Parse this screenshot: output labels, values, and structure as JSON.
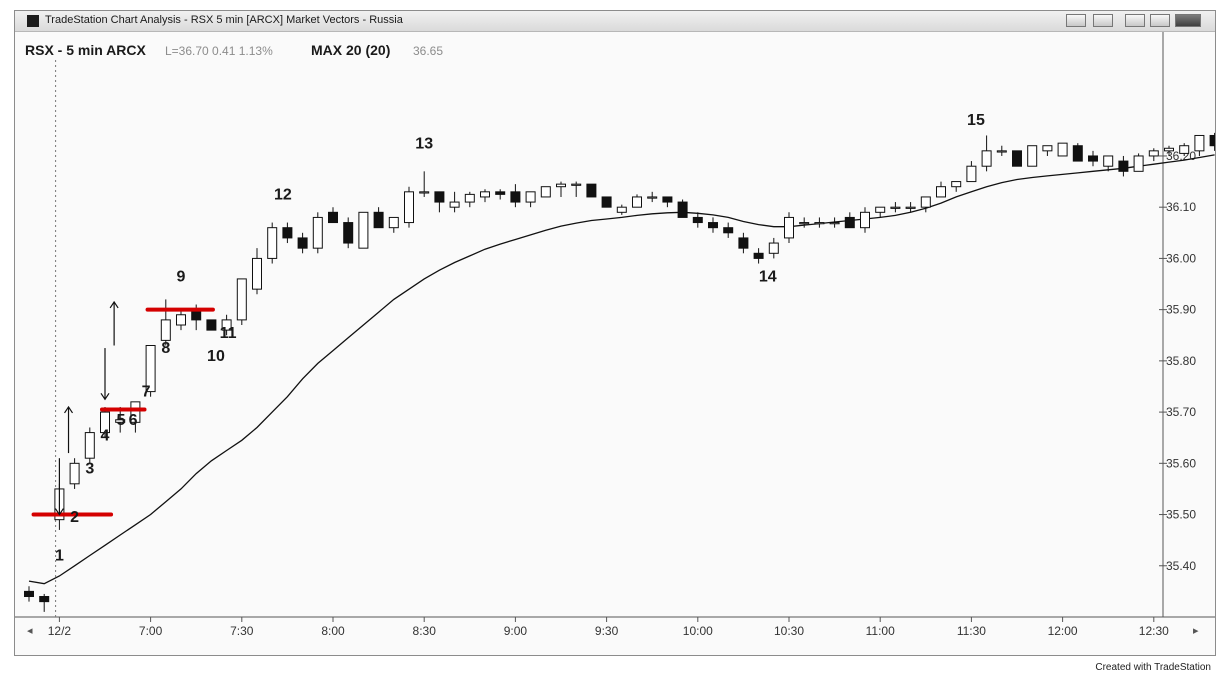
{
  "window": {
    "title": "TradeStation Chart Analysis - RSX 5 min [ARCX] Market Vectors - Russia",
    "icon": "app-icon",
    "buttons": [
      "layout-icon",
      "layout-icon",
      "minimize-icon",
      "restore-icon",
      "close-icon"
    ]
  },
  "footer": {
    "credit": "Created with TradeStation"
  },
  "chart_data": {
    "type": "candlestick",
    "header": {
      "symbol": "RSX - 5 min ARCX",
      "last": "L=36.70 0.41 1.13%",
      "indicator_name": "MAX 20 (20)",
      "indicator_value": "36.65"
    },
    "ylim": [
      35.3,
      36.36
    ],
    "y_ticks": [
      35.4,
      35.5,
      35.6,
      35.7,
      35.8,
      35.9,
      36.0,
      36.1,
      36.2
    ],
    "y_tick_labels": [
      "35.40",
      "35.50",
      "35.60",
      "35.70",
      "35.80",
      "35.90",
      "36.00",
      "36.10",
      "36.20"
    ],
    "x_ticks": [
      {
        "bar": 2,
        "label": "12/2"
      },
      {
        "bar": 8,
        "label": "7:00"
      },
      {
        "bar": 14,
        "label": "7:30"
      },
      {
        "bar": 20,
        "label": "8:00"
      },
      {
        "bar": 26,
        "label": "8:30"
      },
      {
        "bar": 32,
        "label": "9:00"
      },
      {
        "bar": 38,
        "label": "9:30"
      },
      {
        "bar": 44,
        "label": "10:00"
      },
      {
        "bar": 50,
        "label": "10:30"
      },
      {
        "bar": 56,
        "label": "11:00"
      },
      {
        "bar": 62,
        "label": "11:30"
      },
      {
        "bar": 68,
        "label": "12:00"
      },
      {
        "bar": 74,
        "label": "12:30"
      }
    ],
    "session_divider_bar": 1.75,
    "candles": [
      {
        "o": 35.35,
        "h": 35.36,
        "l": 35.33,
        "c": 35.34
      },
      {
        "o": 35.34,
        "h": 35.345,
        "l": 35.31,
        "c": 35.33
      },
      {
        "o": 35.49,
        "h": 35.56,
        "l": 35.47,
        "c": 35.55
      },
      {
        "o": 35.56,
        "h": 35.61,
        "l": 35.55,
        "c": 35.6
      },
      {
        "o": 35.61,
        "h": 35.67,
        "l": 35.6,
        "c": 35.66
      },
      {
        "o": 35.66,
        "h": 35.71,
        "l": 35.65,
        "c": 35.7
      },
      {
        "o": 35.68,
        "h": 35.71,
        "l": 35.66,
        "c": 35.685
      },
      {
        "o": 35.68,
        "h": 35.72,
        "l": 35.66,
        "c": 35.72
      },
      {
        "o": 35.74,
        "h": 35.83,
        "l": 35.73,
        "c": 35.83
      },
      {
        "o": 35.84,
        "h": 35.92,
        "l": 35.83,
        "c": 35.88
      },
      {
        "o": 35.87,
        "h": 35.9,
        "l": 35.86,
        "c": 35.89
      },
      {
        "o": 35.9,
        "h": 35.91,
        "l": 35.86,
        "c": 35.88
      },
      {
        "o": 35.88,
        "h": 35.88,
        "l": 35.86,
        "c": 35.86
      },
      {
        "o": 35.86,
        "h": 35.89,
        "l": 35.85,
        "c": 35.88
      },
      {
        "o": 35.88,
        "h": 35.96,
        "l": 35.87,
        "c": 35.96
      },
      {
        "o": 35.94,
        "h": 36.02,
        "l": 35.93,
        "c": 36.0
      },
      {
        "o": 36.0,
        "h": 36.07,
        "l": 35.99,
        "c": 36.06
      },
      {
        "o": 36.06,
        "h": 36.07,
        "l": 36.03,
        "c": 36.04
      },
      {
        "o": 36.04,
        "h": 36.05,
        "l": 36.01,
        "c": 36.02
      },
      {
        "o": 36.02,
        "h": 36.09,
        "l": 36.01,
        "c": 36.08
      },
      {
        "o": 36.09,
        "h": 36.1,
        "l": 36.07,
        "c": 36.07
      },
      {
        "o": 36.07,
        "h": 36.08,
        "l": 36.02,
        "c": 36.03
      },
      {
        "o": 36.02,
        "h": 36.09,
        "l": 36.02,
        "c": 36.09
      },
      {
        "o": 36.09,
        "h": 36.1,
        "l": 36.06,
        "c": 36.06
      },
      {
        "o": 36.06,
        "h": 36.08,
        "l": 36.05,
        "c": 36.08
      },
      {
        "o": 36.07,
        "h": 36.14,
        "l": 36.06,
        "c": 36.13
      },
      {
        "o": 36.13,
        "h": 36.17,
        "l": 36.12,
        "c": 36.13
      },
      {
        "o": 36.13,
        "h": 36.13,
        "l": 36.09,
        "c": 36.11
      },
      {
        "o": 36.1,
        "h": 36.13,
        "l": 36.09,
        "c": 36.11
      },
      {
        "o": 36.11,
        "h": 36.13,
        "l": 36.1,
        "c": 36.125
      },
      {
        "o": 36.12,
        "h": 36.135,
        "l": 36.11,
        "c": 36.13
      },
      {
        "o": 36.13,
        "h": 36.135,
        "l": 36.115,
        "c": 36.125
      },
      {
        "o": 36.13,
        "h": 36.145,
        "l": 36.1,
        "c": 36.11
      },
      {
        "o": 36.11,
        "h": 36.13,
        "l": 36.1,
        "c": 36.13
      },
      {
        "o": 36.12,
        "h": 36.14,
        "l": 36.12,
        "c": 36.14
      },
      {
        "o": 36.14,
        "h": 36.15,
        "l": 36.12,
        "c": 36.145
      },
      {
        "o": 36.145,
        "h": 36.15,
        "l": 36.12,
        "c": 36.145
      },
      {
        "o": 36.145,
        "h": 36.145,
        "l": 36.12,
        "c": 36.12
      },
      {
        "o": 36.12,
        "h": 36.12,
        "l": 36.1,
        "c": 36.1
      },
      {
        "o": 36.09,
        "h": 36.105,
        "l": 36.085,
        "c": 36.1
      },
      {
        "o": 36.1,
        "h": 36.125,
        "l": 36.1,
        "c": 36.12
      },
      {
        "o": 36.12,
        "h": 36.13,
        "l": 36.11,
        "c": 36.12
      },
      {
        "o": 36.12,
        "h": 36.12,
        "l": 36.1,
        "c": 36.11
      },
      {
        "o": 36.11,
        "h": 36.115,
        "l": 36.08,
        "c": 36.08
      },
      {
        "o": 36.08,
        "h": 36.09,
        "l": 36.06,
        "c": 36.07
      },
      {
        "o": 36.07,
        "h": 36.08,
        "l": 36.05,
        "c": 36.06
      },
      {
        "o": 36.06,
        "h": 36.07,
        "l": 36.04,
        "c": 36.05
      },
      {
        "o": 36.04,
        "h": 36.05,
        "l": 36.01,
        "c": 36.02
      },
      {
        "o": 36.01,
        "h": 36.02,
        "l": 35.99,
        "c": 36.0
      },
      {
        "o": 36.01,
        "h": 36.04,
        "l": 36.0,
        "c": 36.03
      },
      {
        "o": 36.04,
        "h": 36.09,
        "l": 36.03,
        "c": 36.08
      },
      {
        "o": 36.07,
        "h": 36.08,
        "l": 36.06,
        "c": 36.07
      },
      {
        "o": 36.07,
        "h": 36.08,
        "l": 36.06,
        "c": 36.07
      },
      {
        "o": 36.07,
        "h": 36.08,
        "l": 36.06,
        "c": 36.07
      },
      {
        "o": 36.08,
        "h": 36.09,
        "l": 36.06,
        "c": 36.06
      },
      {
        "o": 36.06,
        "h": 36.1,
        "l": 36.05,
        "c": 36.09
      },
      {
        "o": 36.09,
        "h": 36.1,
        "l": 36.08,
        "c": 36.1
      },
      {
        "o": 36.1,
        "h": 36.11,
        "l": 36.09,
        "c": 36.1
      },
      {
        "o": 36.1,
        "h": 36.11,
        "l": 36.09,
        "c": 36.1
      },
      {
        "o": 36.1,
        "h": 36.12,
        "l": 36.09,
        "c": 36.12
      },
      {
        "o": 36.12,
        "h": 36.15,
        "l": 36.12,
        "c": 36.14
      },
      {
        "o": 36.14,
        "h": 36.15,
        "l": 36.13,
        "c": 36.15
      },
      {
        "o": 36.15,
        "h": 36.19,
        "l": 36.15,
        "c": 36.18
      },
      {
        "o": 36.18,
        "h": 36.24,
        "l": 36.17,
        "c": 36.21
      },
      {
        "o": 36.21,
        "h": 36.22,
        "l": 36.2,
        "c": 36.21
      },
      {
        "o": 36.21,
        "h": 36.21,
        "l": 36.18,
        "c": 36.18
      },
      {
        "o": 36.18,
        "h": 36.22,
        "l": 36.18,
        "c": 36.22
      },
      {
        "o": 36.21,
        "h": 36.22,
        "l": 36.2,
        "c": 36.22
      },
      {
        "o": 36.2,
        "h": 36.225,
        "l": 36.2,
        "c": 36.225
      },
      {
        "o": 36.22,
        "h": 36.225,
        "l": 36.19,
        "c": 36.19
      },
      {
        "o": 36.2,
        "h": 36.21,
        "l": 36.18,
        "c": 36.19
      },
      {
        "o": 36.18,
        "h": 36.2,
        "l": 36.17,
        "c": 36.2
      },
      {
        "o": 36.19,
        "h": 36.2,
        "l": 36.16,
        "c": 36.17
      },
      {
        "o": 36.17,
        "h": 36.205,
        "l": 36.17,
        "c": 36.2
      },
      {
        "o": 36.2,
        "h": 36.215,
        "l": 36.19,
        "c": 36.21
      },
      {
        "o": 36.21,
        "h": 36.22,
        "l": 36.2,
        "c": 36.215
      },
      {
        "o": 36.205,
        "h": 36.225,
        "l": 36.2,
        "c": 36.22
      },
      {
        "o": 36.21,
        "h": 36.24,
        "l": 36.2,
        "c": 36.24
      },
      {
        "o": 36.24,
        "h": 36.245,
        "l": 36.21,
        "c": 36.22
      }
    ],
    "moving_average": [
      [
        0,
        35.37
      ],
      [
        1,
        35.365
      ],
      [
        2,
        35.38
      ],
      [
        3,
        35.4
      ],
      [
        4,
        35.42
      ],
      [
        5,
        35.44
      ],
      [
        6,
        35.46
      ],
      [
        7,
        35.48
      ],
      [
        8,
        35.5
      ],
      [
        9,
        35.525
      ],
      [
        10,
        35.55
      ],
      [
        11,
        35.58
      ],
      [
        12,
        35.605
      ],
      [
        13,
        35.625
      ],
      [
        14,
        35.645
      ],
      [
        15,
        35.67
      ],
      [
        16,
        35.7
      ],
      [
        17,
        35.73
      ],
      [
        18,
        35.765
      ],
      [
        19,
        35.795
      ],
      [
        20,
        35.82
      ],
      [
        21,
        35.845
      ],
      [
        22,
        35.87
      ],
      [
        23,
        35.895
      ],
      [
        24,
        35.92
      ],
      [
        25,
        35.94
      ],
      [
        26,
        35.96
      ],
      [
        27,
        35.977
      ],
      [
        28,
        35.992
      ],
      [
        29,
        36.005
      ],
      [
        30,
        36.018
      ],
      [
        31,
        36.028
      ],
      [
        32,
        36.037
      ],
      [
        33,
        36.046
      ],
      [
        34,
        36.055
      ],
      [
        35,
        36.063
      ],
      [
        36,
        36.069
      ],
      [
        37,
        36.074
      ],
      [
        38,
        36.077
      ],
      [
        39,
        36.08
      ],
      [
        40,
        36.084
      ],
      [
        41,
        36.087
      ],
      [
        42,
        36.089
      ],
      [
        43,
        36.09
      ],
      [
        44,
        36.088
      ],
      [
        45,
        36.085
      ],
      [
        46,
        36.08
      ],
      [
        47,
        36.072
      ],
      [
        48,
        36.066
      ],
      [
        49,
        36.062
      ],
      [
        50,
        36.062
      ],
      [
        51,
        36.065
      ],
      [
        52,
        36.068
      ],
      [
        53,
        36.071
      ],
      [
        54,
        36.074
      ],
      [
        55,
        36.077
      ],
      [
        56,
        36.08
      ],
      [
        57,
        36.084
      ],
      [
        58,
        36.09
      ],
      [
        59,
        36.098
      ],
      [
        60,
        36.108
      ],
      [
        61,
        36.12
      ],
      [
        62,
        36.13
      ],
      [
        63,
        36.14
      ],
      [
        64,
        36.148
      ],
      [
        65,
        36.154
      ],
      [
        66,
        36.158
      ],
      [
        67,
        36.161
      ],
      [
        68,
        36.164
      ],
      [
        69,
        36.167
      ],
      [
        70,
        36.17
      ],
      [
        71,
        36.173
      ],
      [
        72,
        36.176
      ],
      [
        73,
        36.18
      ],
      [
        74,
        36.184
      ],
      [
        75,
        36.188
      ],
      [
        76,
        36.192
      ],
      [
        77,
        36.197
      ],
      [
        78,
        36.202
      ]
    ],
    "bar_labels": [
      {
        "text": "1",
        "bar": 2,
        "y": 35.41
      },
      {
        "text": "2",
        "bar": 3,
        "y": 35.485
      },
      {
        "text": "3",
        "bar": 4,
        "y": 35.58
      },
      {
        "text": "4",
        "bar": 5,
        "y": 35.645
      },
      {
        "text": "5",
        "bar": 6.05,
        "y": 35.675
      },
      {
        "text": "6",
        "bar": 6.85,
        "y": 35.675
      },
      {
        "text": "7",
        "bar": 7.7,
        "y": 35.73
      },
      {
        "text": "8",
        "bar": 9,
        "y": 35.815
      },
      {
        "text": "9",
        "bar": 10,
        "y": 35.955
      },
      {
        "text": "10",
        "bar": 12.3,
        "y": 35.8
      },
      {
        "text": "11",
        "bar": 13.1,
        "y": 35.845
      },
      {
        "text": "12",
        "bar": 16.7,
        "y": 36.115
      },
      {
        "text": "13",
        "bar": 26,
        "y": 36.215
      },
      {
        "text": "14",
        "bar": 48.6,
        "y": 35.955
      },
      {
        "text": "15",
        "bar": 62.3,
        "y": 36.26
      }
    ],
    "annotations": {
      "red_lines": [
        {
          "y": 35.5,
          "from": 0.3,
          "to": 5.4
        },
        {
          "y": 35.705,
          "from": 4.8,
          "to": 7.6
        },
        {
          "y": 35.9,
          "from": 7.8,
          "to": 12.1
        }
      ],
      "arrows": [
        {
          "dir": "down",
          "bar": 2,
          "top": 35.61,
          "bottom": 35.5
        },
        {
          "dir": "up",
          "bar": 2.6,
          "top": 35.71,
          "bottom": 35.62
        },
        {
          "dir": "down",
          "bar": 5,
          "top": 35.825,
          "bottom": 35.725
        },
        {
          "dir": "up",
          "bar": 5.6,
          "top": 35.915,
          "bottom": 35.83
        }
      ]
    },
    "colors": {
      "up_fill": "#ffffff",
      "down_fill": "#111111",
      "candle_stroke": "#111111",
      "moving_average": "#111111",
      "annotation": "#d40000",
      "pen": "#111111"
    }
  }
}
